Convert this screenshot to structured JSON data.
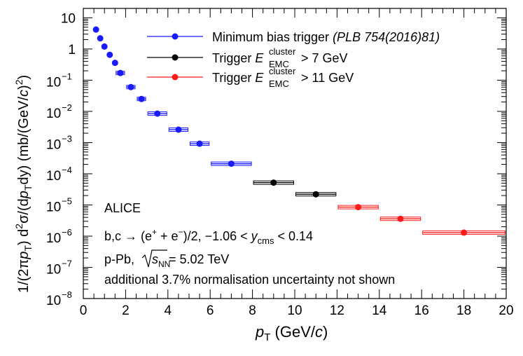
{
  "chart_data": {
    "type": "scatter",
    "x_axis": {
      "range": [
        0,
        20
      ],
      "major_ticks": [
        0,
        2,
        4,
        6,
        8,
        10,
        12,
        14,
        16,
        18,
        20
      ],
      "tick_labels": [
        "0",
        "2",
        "4",
        "6",
        "8",
        "10",
        "12",
        "14",
        "16",
        "18",
        "20"
      ],
      "label": {
        "p": "p",
        "sub": "T",
        "mid": " (GeV/",
        "c": "c",
        "end": ")"
      }
    },
    "y_axis": {
      "scale": "log",
      "range": [
        1e-08,
        20
      ],
      "tick_labels": [
        {
          "value": 10,
          "base": "10",
          "exp": ""
        },
        {
          "value": 1,
          "base": "1",
          "exp": ""
        },
        {
          "value": 0.1,
          "base": "10",
          "exp": "−1"
        },
        {
          "value": 0.01,
          "base": "10",
          "exp": "−2"
        },
        {
          "value": 0.001,
          "base": "10",
          "exp": "−3"
        },
        {
          "value": 0.0001,
          "base": "10",
          "exp": "−4"
        },
        {
          "value": 1e-05,
          "base": "10",
          "exp": "−5"
        },
        {
          "value": 1e-06,
          "base": "10",
          "exp": "−6"
        },
        {
          "value": 1e-07,
          "base": "10",
          "exp": "−7"
        },
        {
          "value": 1e-08,
          "base": "10",
          "exp": "−8"
        }
      ],
      "label": {
        "a": "1/(2π",
        "p1": "p",
        "s1": "T",
        "b": ") d",
        "sup2": "2",
        "c": "σ/(d",
        "p2": "p",
        "s2": "T",
        "d": "dy) (mb/(GeV/",
        "cc": "c",
        "e": ")",
        "sup3": "2",
        "f": ")"
      }
    },
    "series": [
      {
        "name": "Minimum bias trigger",
        "legend_suffix": "(PLB 754(2016)81)",
        "color": "#1a1aff",
        "points": [
          {
            "x": 0.6,
            "y": 4.2,
            "xerr": 0.05,
            "box": false
          },
          {
            "x": 0.8,
            "y": 2.2,
            "xerr": 0.05,
            "box": false
          },
          {
            "x": 1.0,
            "y": 1.2,
            "xerr": 0.05,
            "box": false
          },
          {
            "x": 1.25,
            "y": 0.65,
            "xerr": 0.1,
            "box": false
          },
          {
            "x": 1.5,
            "y": 0.36,
            "xerr": 0.1,
            "box": false
          },
          {
            "x": 1.75,
            "y": 0.17,
            "xerr": 0.2,
            "box": true
          },
          {
            "x": 2.25,
            "y": 0.06,
            "xerr": 0.2,
            "box": true
          },
          {
            "x": 2.75,
            "y": 0.025,
            "xerr": 0.2,
            "box": true
          },
          {
            "x": 3.5,
            "y": 0.0085,
            "xerr": 0.45,
            "box": true
          },
          {
            "x": 4.5,
            "y": 0.0026,
            "xerr": 0.45,
            "box": true
          },
          {
            "x": 5.5,
            "y": 0.00092,
            "xerr": 0.45,
            "box": true
          },
          {
            "x": 7.0,
            "y": 0.00021,
            "xerr": 0.95,
            "box": true
          }
        ]
      },
      {
        "name": "Trigger E_EMC^cluster > 7 GeV",
        "legend": {
          "pre": "Trigger ",
          "E": "E",
          "sup": "cluster",
          "sub": "EMC",
          "post": " > 7 GeV"
        },
        "color": "#000000",
        "points": [
          {
            "x": 9.0,
            "y": 5.2e-05,
            "xerr": 0.95,
            "box": true
          },
          {
            "x": 11.0,
            "y": 2.2e-05,
            "xerr": 0.95,
            "box": true
          }
        ]
      },
      {
        "name": "Trigger E_EMC^cluster > 11 GeV",
        "legend": {
          "pre": "Trigger ",
          "E": "E",
          "sup": "cluster",
          "sub": "EMC",
          "post": " > 11 GeV"
        },
        "color": "#ff1a1a",
        "points": [
          {
            "x": 13.0,
            "y": 8.5e-06,
            "xerr": 0.95,
            "box": true
          },
          {
            "x": 15.0,
            "y": 3.6e-06,
            "xerr": 0.95,
            "box": true
          },
          {
            "x": 18.0,
            "y": 1.3e-06,
            "xerr": 1.95,
            "box": true
          }
        ]
      }
    ],
    "annotations": {
      "alice": "ALICE",
      "decay": {
        "a": "b,c → (e",
        "sup1": "+",
        "b": " + e",
        "sup2": "−",
        "c": ")/2, −1.06 < ",
        "y": "y",
        "sub": "cms",
        "d": " < 0.14"
      },
      "system": {
        "a": "p-Pb, ",
        "s": "s",
        "sub": "NN",
        "b": " = 5.02 TeV"
      },
      "norm": "additional 3.7% normalisation uncertainty not shown"
    }
  }
}
